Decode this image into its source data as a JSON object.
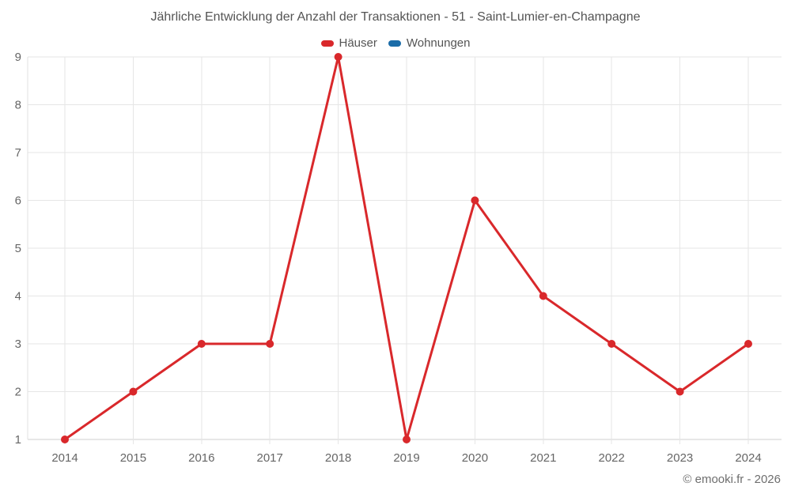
{
  "title": "Jährliche Entwicklung der Anzahl der Transaktionen - 51 - Saint-Lumier-en-Champagne",
  "legend": {
    "items": [
      {
        "label": "Häuser",
        "color": "#d9282b"
      },
      {
        "label": "Wohnungen",
        "color": "#1b6ca8"
      }
    ]
  },
  "footer": {
    "credit": "© emooki.fr - 2026"
  },
  "chart_data": {
    "type": "line",
    "title": "Jährliche Entwicklung der Anzahl der Transaktionen - 51 - Saint-Lumier-en-Champagne",
    "x": [
      "2014",
      "2015",
      "2016",
      "2017",
      "2018",
      "2019",
      "2020",
      "2021",
      "2022",
      "2023",
      "2024"
    ],
    "series": [
      {
        "name": "Häuser",
        "color": "#d9282b",
        "values": [
          1,
          2,
          3,
          3,
          9,
          1,
          6,
          4,
          3,
          2,
          3
        ]
      },
      {
        "name": "Wohnungen",
        "color": "#1b6ca8",
        "values": []
      }
    ],
    "xlabel": "",
    "ylabel": "",
    "ylim": [
      1,
      9
    ],
    "yticks": [
      1,
      2,
      3,
      4,
      5,
      6,
      7,
      8,
      9
    ],
    "grid": true,
    "legend_position": "top-center"
  },
  "colors": {
    "background": "#ffffff",
    "title_text": "#545454",
    "axis_label": "#666666",
    "gridline": "#e6e6e6",
    "axis_line": "#cfcfcf"
  }
}
